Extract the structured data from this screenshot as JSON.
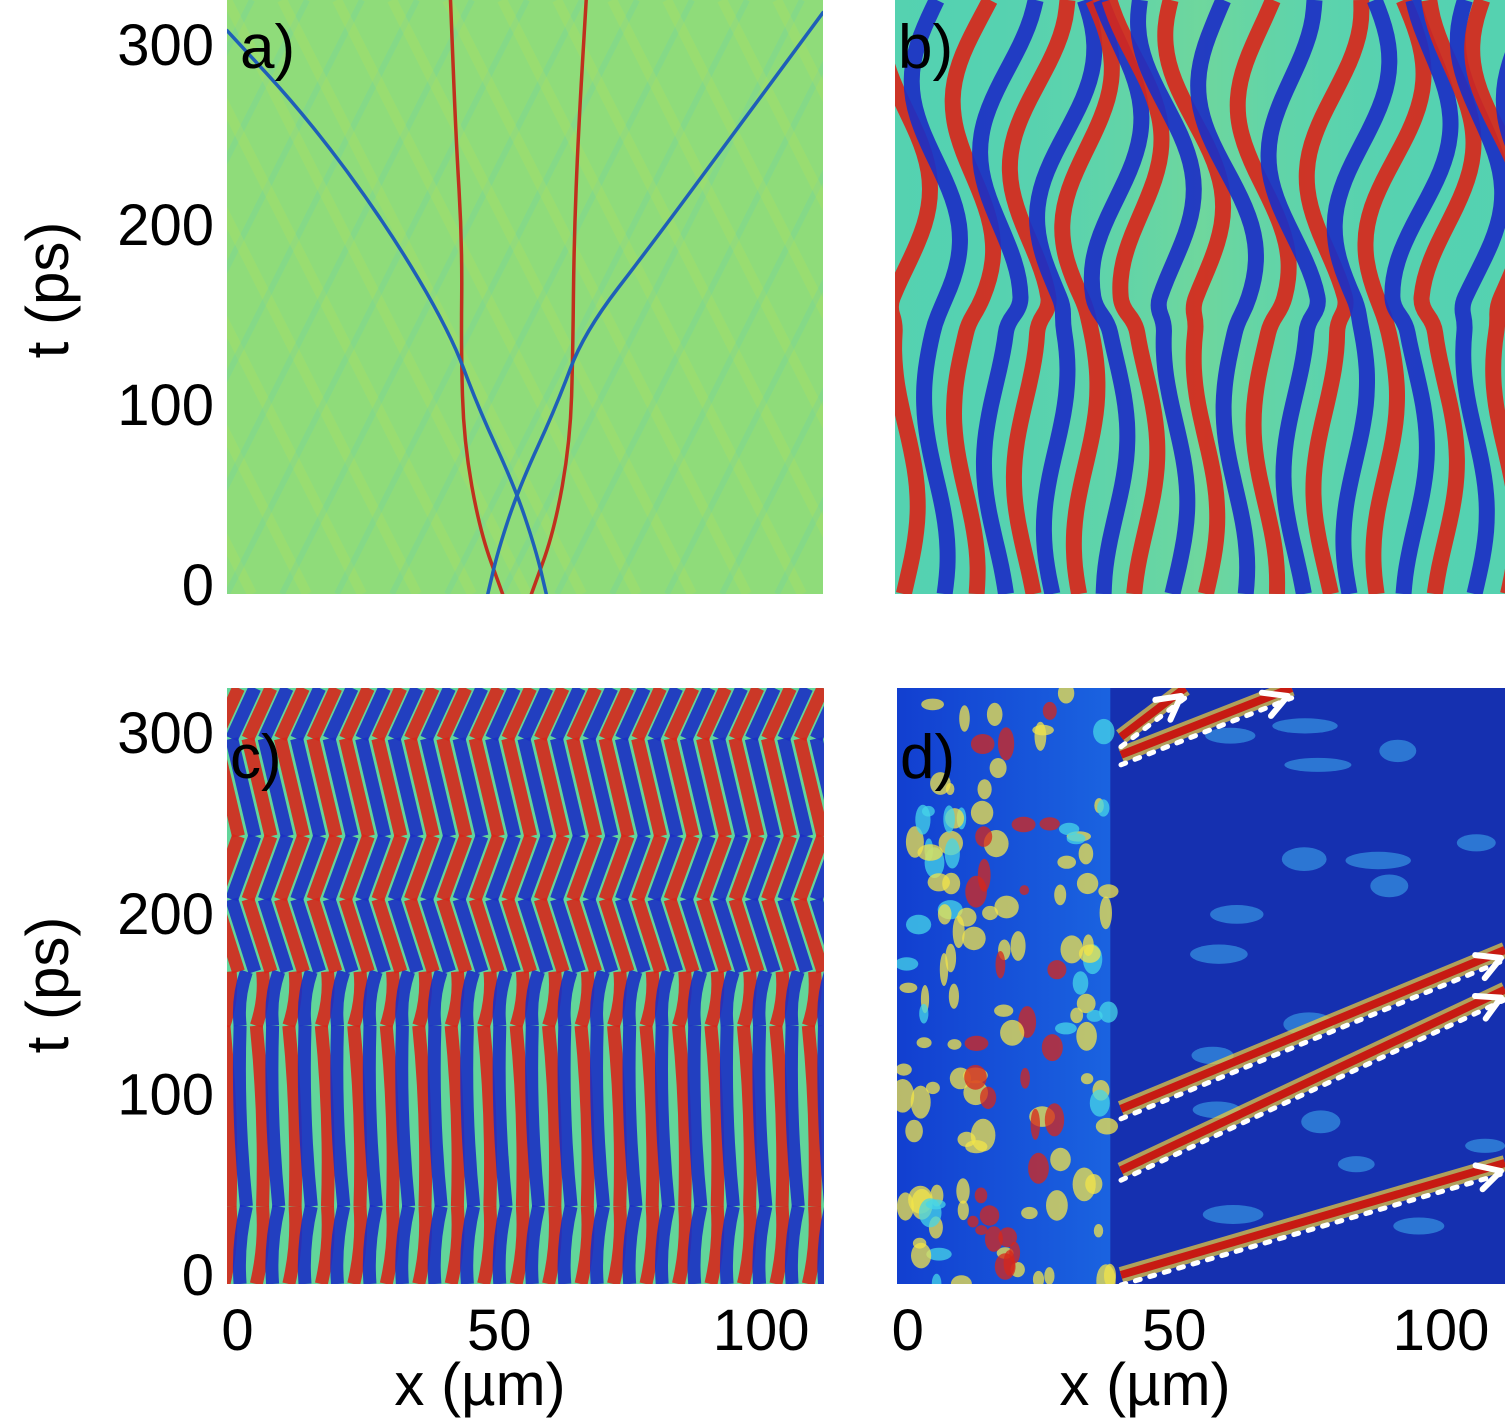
{
  "chart_data": [
    {
      "type": "heatmap",
      "panel_label": "a)",
      "ylabel": "t (ps)",
      "xlabel": "",
      "yticks": [
        0,
        100,
        200,
        300
      ],
      "xticks": [],
      "xlim": [
        0,
        112
      ],
      "ylim": [
        -5,
        325
      ],
      "background": "#8fdc7a",
      "tracks": [
        {
          "color": "#c0301e",
          "width": 3.5,
          "points": [
            [
              51.8,
              -5
            ],
            [
              47.5,
              30
            ],
            [
              44.5,
              80
            ],
            [
              44.0,
              130
            ],
            [
              44.2,
              190
            ],
            [
              43.0,
              250
            ],
            [
              42.0,
              325
            ]
          ]
        },
        {
          "color": "#c0301e",
          "width": 3.5,
          "points": [
            [
              57.2,
              -5
            ],
            [
              61.5,
              30
            ],
            [
              64.5,
              80
            ],
            [
              65.0,
              130
            ],
            [
              65.2,
              190
            ],
            [
              66.0,
              250
            ],
            [
              67.5,
              325
            ]
          ]
        },
        {
          "color": "#1f5fb8",
          "width": 3.5,
          "points": [
            [
              49.0,
              -5
            ],
            [
              51.0,
              20
            ],
            [
              55.0,
              55
            ],
            [
              62.0,
              100
            ],
            [
              67.0,
              140
            ],
            [
              80.0,
              190
            ],
            [
              95.0,
              250
            ],
            [
              112.0,
              318
            ]
          ]
        },
        {
          "color": "#1f5fb8",
          "width": 3.5,
          "points": [
            [
              60.0,
              -5
            ],
            [
              58.0,
              20
            ],
            [
              54.0,
              55
            ],
            [
              47.0,
              100
            ],
            [
              42.0,
              140
            ],
            [
              30.0,
              200
            ],
            [
              15.0,
              260
            ],
            [
              0.0,
              308
            ]
          ]
        }
      ]
    },
    {
      "type": "heatmap",
      "panel_label": "b)",
      "ylabel": "",
      "xlabel": "",
      "yticks": [],
      "xticks": [],
      "xlim": [
        0,
        112
      ],
      "ylim": [
        -5,
        325
      ],
      "background": "#55d2b0",
      "stripe_period": 11,
      "stripe_count": 11,
      "stripe_colors": [
        "#d7271b",
        "#1c2fc4"
      ]
    },
    {
      "type": "heatmap",
      "panel_label": "c)",
      "ylabel": "t (ps)",
      "xlabel": "",
      "yticks": [
        0,
        100,
        200,
        300
      ],
      "xticks": [
        0,
        50,
        100
      ],
      "xlim": [
        -2,
        112
      ],
      "ylim": [
        -5,
        325
      ],
      "background": "#62d59a",
      "stripe_period": 6.2,
      "stripe_count": 18,
      "stripe_colors": [
        "#d7271b",
        "#1c2fc4"
      ],
      "band_boundaries": [
        38,
        138,
        168,
        208,
        243,
        297
      ]
    },
    {
      "type": "heatmap",
      "panel_label": "d)",
      "ylabel": "",
      "xlabel": "x (µm)",
      "yticks": [],
      "xticks": [
        0,
        50,
        100
      ],
      "xlim": [
        -2,
        112
      ],
      "ylim": [
        -5,
        325
      ],
      "background": "#1530b0",
      "beams": [
        {
          "x0": 40,
          "t0": 0,
          "x1": 112,
          "t1": 62
        },
        {
          "x0": 40,
          "t0": 58,
          "x1": 112,
          "t1": 158
        },
        {
          "x0": 40,
          "t0": 92,
          "x1": 112,
          "t1": 180
        },
        {
          "x0": 40,
          "t0": 288,
          "x1": 72,
          "t1": 325
        },
        {
          "x0": 40,
          "t0": 298,
          "x1": 52,
          "t1": 325
        }
      ]
    }
  ],
  "shared_xlabel": "x (µm)"
}
